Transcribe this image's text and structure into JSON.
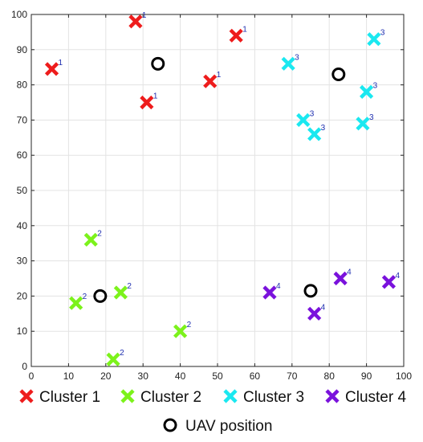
{
  "chart_data": {
    "type": "scatter",
    "xlim": [
      0,
      100
    ],
    "ylim": [
      0,
      100
    ],
    "xticks": [
      0,
      10,
      20,
      30,
      40,
      50,
      60,
      70,
      80,
      90,
      100
    ],
    "yticks": [
      0,
      10,
      20,
      30,
      40,
      50,
      60,
      70,
      80,
      90,
      100
    ],
    "grid": true,
    "legend_placement": "bottom",
    "series": [
      {
        "name": "Cluster 1",
        "marker": "x",
        "color": "#ee1c1c",
        "point_label": "1",
        "points": [
          [
            5.5,
            84.5
          ],
          [
            28,
            98
          ],
          [
            31,
            75
          ],
          [
            48,
            81
          ],
          [
            55,
            94
          ]
        ]
      },
      {
        "name": "Cluster 2",
        "marker": "x",
        "color": "#7cf21b",
        "point_label": "2",
        "points": [
          [
            16,
            36
          ],
          [
            12,
            18
          ],
          [
            24,
            21
          ],
          [
            22,
            2
          ],
          [
            40,
            10
          ]
        ]
      },
      {
        "name": "Cluster 3",
        "marker": "x",
        "color": "#1ae8f0",
        "point_label": "3",
        "points": [
          [
            69,
            86
          ],
          [
            73,
            70
          ],
          [
            76,
            66
          ],
          [
            89,
            69
          ],
          [
            90,
            78
          ],
          [
            92,
            93
          ]
        ]
      },
      {
        "name": "Cluster 4",
        "marker": "x",
        "color": "#7a12dc",
        "point_label": "4",
        "points": [
          [
            64,
            21
          ],
          [
            76,
            15
          ],
          [
            83,
            25
          ],
          [
            96,
            24
          ]
        ]
      },
      {
        "name": "UAV position",
        "marker": "circle",
        "color": "#000000",
        "points": [
          [
            34,
            86
          ],
          [
            82.5,
            83
          ],
          [
            18.5,
            20
          ],
          [
            75,
            21.5
          ]
        ]
      }
    ]
  }
}
